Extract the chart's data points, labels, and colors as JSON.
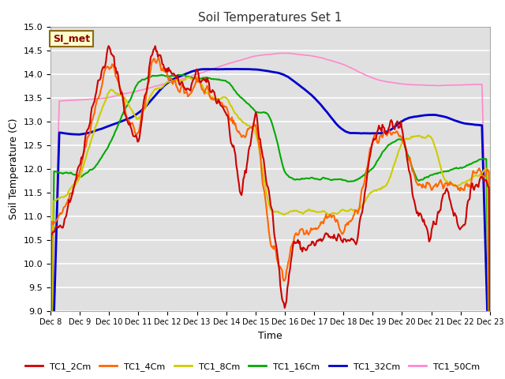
{
  "title": "Soil Temperatures Set 1",
  "xlabel": "Time",
  "ylabel": "Soil Temperature (C)",
  "ylim": [
    9.0,
    15.0
  ],
  "yticks": [
    9.0,
    9.5,
    10.0,
    10.5,
    11.0,
    11.5,
    12.0,
    12.5,
    13.0,
    13.5,
    14.0,
    14.5,
    15.0
  ],
  "xtick_labels": [
    "Dec 8",
    "Dec 9",
    "Dec 10",
    "Dec 11",
    "Dec 12",
    "Dec 13",
    "Dec 14",
    "Dec 15",
    "Dec 16",
    "Dec 17",
    "Dec 18",
    "Dec 19",
    "Dec 20",
    "Dec 21",
    "Dec 22",
    "Dec 23"
  ],
  "series_colors": {
    "TC1_2Cm": "#cc0000",
    "TC1_4Cm": "#ff6600",
    "TC1_8Cm": "#cccc00",
    "TC1_16Cm": "#00aa00",
    "TC1_32Cm": "#0000cc",
    "TC1_50Cm": "#ff88cc"
  },
  "legend_label": "SI_met",
  "fig_bg_color": "#ffffff",
  "plot_bg_color": "#e8e8e8",
  "grid_color": "#ffffff",
  "n_points": 500
}
